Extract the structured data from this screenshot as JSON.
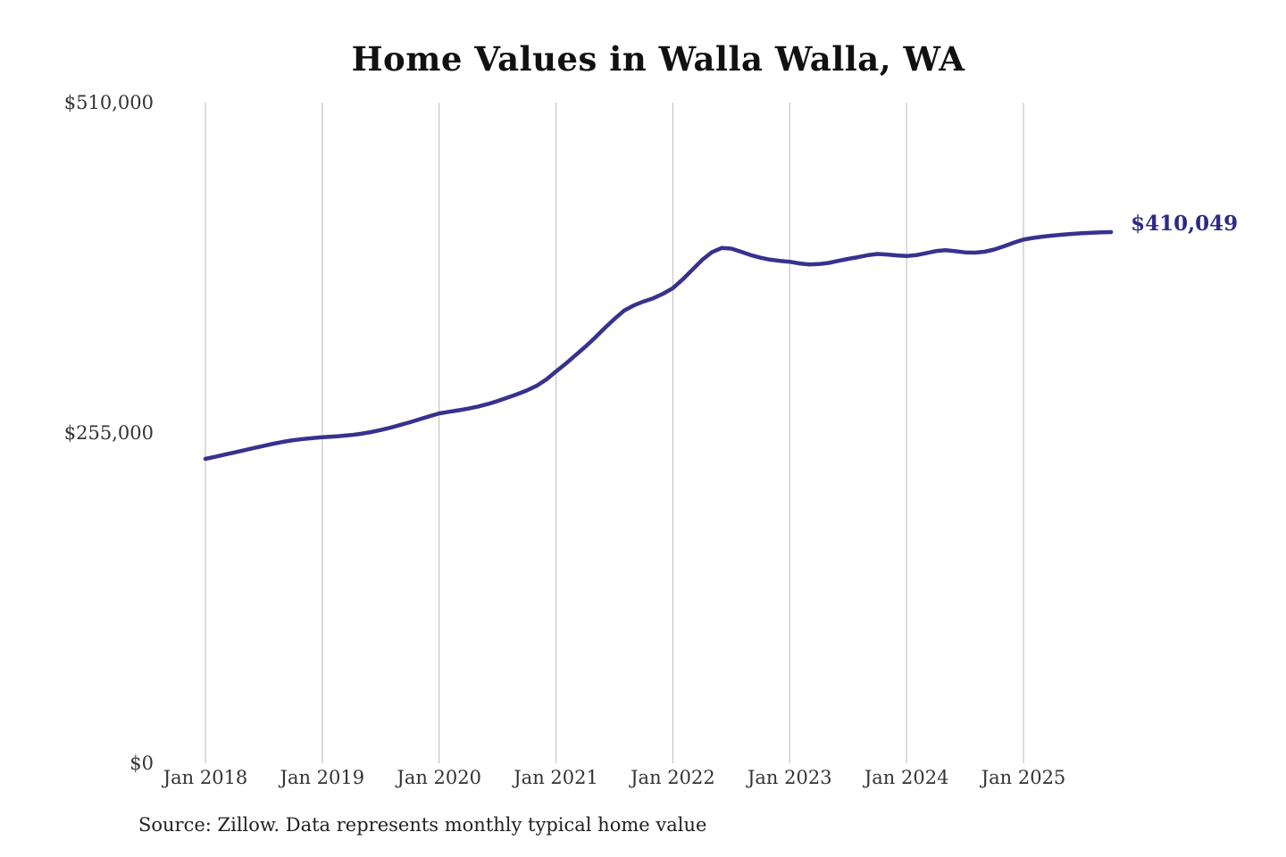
{
  "page": {
    "title": "Home Values in Walla Walla, WA",
    "source_note": "Source: Zillow. Data represents monthly typical home value",
    "end_value_label": "$410,049"
  },
  "colors": {
    "background": "#ffffff",
    "line": "#37328f",
    "annotation": "#2c2a84",
    "gridline": "#c9c9c9",
    "tick_text": "#333333",
    "title_text": "#111111",
    "source_text": "#222222"
  },
  "chart_data": {
    "type": "line",
    "title": "Home Values in Walla Walla, WA",
    "xlabel": "",
    "ylabel": "",
    "ylim": [
      0,
      510000
    ],
    "y_ticks": [
      0,
      255000,
      510000
    ],
    "y_tick_labels": [
      "$0",
      "$255,000",
      "$510,000"
    ],
    "x_tick_labels": [
      "Jan 2018",
      "Jan 2019",
      "Jan 2020",
      "Jan 2021",
      "Jan 2022",
      "Jan 2023",
      "Jan 2024",
      "Jan 2025"
    ],
    "x_tick_month_indices": [
      0,
      12,
      24,
      36,
      48,
      60,
      72,
      84
    ],
    "grid": "vertical",
    "legend": "none",
    "frequency": "monthly",
    "last_value": 410049,
    "last_value_label": "$410,049",
    "series": [
      {
        "name": "Typical home value",
        "x": [
          "2018-01",
          "2018-02",
          "2018-03",
          "2018-04",
          "2018-05",
          "2018-06",
          "2018-07",
          "2018-08",
          "2018-09",
          "2018-10",
          "2018-11",
          "2018-12",
          "2019-01",
          "2019-02",
          "2019-03",
          "2019-04",
          "2019-05",
          "2019-06",
          "2019-07",
          "2019-08",
          "2019-09",
          "2019-10",
          "2019-11",
          "2019-12",
          "2020-01",
          "2020-02",
          "2020-03",
          "2020-04",
          "2020-05",
          "2020-06",
          "2020-07",
          "2020-08",
          "2020-09",
          "2020-10",
          "2020-11",
          "2020-12",
          "2021-01",
          "2021-02",
          "2021-03",
          "2021-04",
          "2021-05",
          "2021-06",
          "2021-07",
          "2021-08",
          "2021-09",
          "2021-10",
          "2021-11",
          "2021-12",
          "2022-01",
          "2022-02",
          "2022-03",
          "2022-04",
          "2022-05",
          "2022-06",
          "2022-07",
          "2022-08",
          "2022-09",
          "2022-10",
          "2022-11",
          "2022-12",
          "2023-01",
          "2023-02",
          "2023-03",
          "2023-04",
          "2023-05",
          "2023-06",
          "2023-07",
          "2023-08",
          "2023-09",
          "2023-10",
          "2023-11",
          "2023-12",
          "2024-01",
          "2024-02",
          "2024-03",
          "2024-04",
          "2024-05",
          "2024-06",
          "2024-07",
          "2024-08",
          "2024-09",
          "2024-10",
          "2024-11",
          "2024-12",
          "2025-01",
          "2025-02",
          "2025-03",
          "2025-04",
          "2025-05",
          "2025-06",
          "2025-07",
          "2025-08",
          "2025-09",
          "2025-10"
        ],
        "values": [
          235000,
          236600,
          238300,
          240000,
          241700,
          243400,
          245100,
          246700,
          248200,
          249400,
          250300,
          251100,
          251700,
          252200,
          252700,
          253400,
          254400,
          255700,
          257300,
          259100,
          261100,
          263300,
          265600,
          267900,
          270100,
          271300,
          272500,
          273800,
          275400,
          277300,
          279600,
          282200,
          284900,
          287800,
          291400,
          296300,
          302500,
          308500,
          315000,
          321500,
          328500,
          336000,
          343000,
          349500,
          353500,
          356500,
          359000,
          362500,
          366800,
          373500,
          381000,
          388500,
          394500,
          397800,
          397300,
          394900,
          392300,
          390300,
          388800,
          387900,
          387200,
          385900,
          385100,
          385400,
          386300,
          387900,
          389400,
          390700,
          392200,
          393200,
          392800,
          392100,
          391600,
          392300,
          393800,
          395400,
          396100,
          395300,
          394400,
          394200,
          394900,
          396600,
          399100,
          401900,
          404300,
          405600,
          406600,
          407400,
          408100,
          408700,
          409200,
          409600,
          409900,
          410049
        ]
      }
    ]
  }
}
